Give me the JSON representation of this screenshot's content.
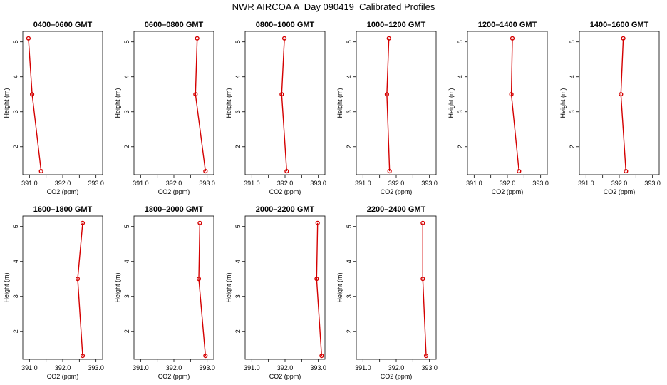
{
  "title": "NWR AIRCOA A  Day 090419  Calibrated Profiles",
  "colors": {
    "line": "#d40000",
    "axis": "#000000",
    "background": "#ffffff"
  },
  "chart_data": [
    {
      "type": "line",
      "title": "0400–0600 GMT",
      "xlabel": "CO2 (ppm)",
      "ylabel": "Height (m)",
      "xlim": [
        390.8,
        393.2
      ],
      "ylim": [
        1.2,
        5.3
      ],
      "xticks": [
        391.0,
        392.0,
        393.0
      ],
      "xticklabels": [
        "391.0",
        "392.0",
        "393.0"
      ],
      "yticks": [
        2,
        3,
        4,
        5
      ],
      "yticklabels": [
        "2",
        "3",
        "4",
        "5"
      ],
      "series": [
        {
          "x": [
            391.35,
            391.08,
            390.97
          ],
          "y": [
            1.3,
            3.5,
            5.1
          ]
        }
      ]
    },
    {
      "type": "line",
      "title": "0600–0800 GMT",
      "xlabel": "CO2 (ppm)",
      "ylabel": "Height (m)",
      "xlim": [
        390.8,
        393.2
      ],
      "ylim": [
        1.2,
        5.3
      ],
      "xticks": [
        391.0,
        392.0,
        393.0
      ],
      "xticklabels": [
        "391.0",
        "392.0",
        "393.0"
      ],
      "yticks": [
        2,
        3,
        4,
        5
      ],
      "yticklabels": [
        "2",
        "3",
        "4",
        "5"
      ],
      "series": [
        {
          "x": [
            392.95,
            392.65,
            392.7
          ],
          "y": [
            1.3,
            3.5,
            5.1
          ]
        }
      ]
    },
    {
      "type": "line",
      "title": "0800–1000 GMT",
      "xlabel": "CO2 (ppm)",
      "ylabel": "Height (m)",
      "xlim": [
        390.8,
        393.2
      ],
      "ylim": [
        1.2,
        5.3
      ],
      "xticks": [
        391.0,
        392.0,
        393.0
      ],
      "xticklabels": [
        "391.0",
        "392.0",
        "393.0"
      ],
      "yticks": [
        2,
        3,
        4,
        5
      ],
      "yticklabels": [
        "2",
        "3",
        "4",
        "5"
      ],
      "series": [
        {
          "x": [
            392.05,
            391.9,
            391.98
          ],
          "y": [
            1.3,
            3.5,
            5.1
          ]
        }
      ]
    },
    {
      "type": "line",
      "title": "1000–1200 GMT",
      "xlabel": "CO2 (ppm)",
      "ylabel": "Height (m)",
      "xlim": [
        390.8,
        393.2
      ],
      "ylim": [
        1.2,
        5.3
      ],
      "xticks": [
        391.0,
        392.0,
        393.0
      ],
      "xticklabels": [
        "391.0",
        "392.0",
        "393.0"
      ],
      "yticks": [
        2,
        3,
        4,
        5
      ],
      "yticklabels": [
        "2",
        "3",
        "4",
        "5"
      ],
      "series": [
        {
          "x": [
            391.8,
            391.72,
            391.78
          ],
          "y": [
            1.3,
            3.5,
            5.1
          ]
        }
      ]
    },
    {
      "type": "line",
      "title": "1200–1400 GMT",
      "xlabel": "CO2 (ppm)",
      "ylabel": "Height (m)",
      "xlim": [
        390.8,
        393.2
      ],
      "ylim": [
        1.2,
        5.3
      ],
      "xticks": [
        391.0,
        392.0,
        393.0
      ],
      "xticklabels": [
        "391.0",
        "392.0",
        "393.0"
      ],
      "yticks": [
        2,
        3,
        4,
        5
      ],
      "yticklabels": [
        "2",
        "3",
        "4",
        "5"
      ],
      "series": [
        {
          "x": [
            392.35,
            392.12,
            392.15
          ],
          "y": [
            1.3,
            3.5,
            5.1
          ]
        }
      ]
    },
    {
      "type": "line",
      "title": "1400–1600 GMT",
      "xlabel": "CO2 (ppm)",
      "ylabel": "Height (m)",
      "xlim": [
        390.8,
        393.2
      ],
      "ylim": [
        1.2,
        5.3
      ],
      "xticks": [
        391.0,
        392.0,
        393.0
      ],
      "xticklabels": [
        "391.0",
        "392.0",
        "393.0"
      ],
      "yticks": [
        2,
        3,
        4,
        5
      ],
      "yticklabels": [
        "2",
        "3",
        "4",
        "5"
      ],
      "series": [
        {
          "x": [
            392.2,
            392.05,
            392.12
          ],
          "y": [
            1.3,
            3.5,
            5.1
          ]
        }
      ]
    },
    {
      "type": "line",
      "title": "1600–1800 GMT",
      "xlabel": "CO2 (ppm)",
      "ylabel": "Height (m)",
      "xlim": [
        390.8,
        393.2
      ],
      "ylim": [
        1.2,
        5.3
      ],
      "xticks": [
        391.0,
        392.0,
        393.0
      ],
      "xticklabels": [
        "391.0",
        "392.0",
        "393.0"
      ],
      "yticks": [
        2,
        3,
        4,
        5
      ],
      "yticklabels": [
        "2",
        "3",
        "4",
        "5"
      ],
      "series": [
        {
          "x": [
            392.6,
            392.45,
            392.6
          ],
          "y": [
            1.3,
            3.5,
            5.1
          ]
        }
      ]
    },
    {
      "type": "line",
      "title": "1800–2000 GMT",
      "xlabel": "CO2 (ppm)",
      "ylabel": "Height (m)",
      "xlim": [
        390.8,
        393.2
      ],
      "ylim": [
        1.2,
        5.3
      ],
      "xticks": [
        391.0,
        392.0,
        393.0
      ],
      "xticklabels": [
        "391.0",
        "392.0",
        "393.0"
      ],
      "yticks": [
        2,
        3,
        4,
        5
      ],
      "yticklabels": [
        "2",
        "3",
        "4",
        "5"
      ],
      "series": [
        {
          "x": [
            392.95,
            392.75,
            392.78
          ],
          "y": [
            1.3,
            3.5,
            5.1
          ]
        }
      ]
    },
    {
      "type": "line",
      "title": "2000–2200 GMT",
      "xlabel": "CO2 (ppm)",
      "ylabel": "Height (m)",
      "xlim": [
        390.8,
        393.2
      ],
      "ylim": [
        1.2,
        5.3
      ],
      "xticks": [
        391.0,
        392.0,
        393.0
      ],
      "xticklabels": [
        "391.0",
        "392.0",
        "393.0"
      ],
      "yticks": [
        2,
        3,
        4,
        5
      ],
      "yticklabels": [
        "2",
        "3",
        "4",
        "5"
      ],
      "series": [
        {
          "x": [
            393.1,
            392.95,
            392.98
          ],
          "y": [
            1.3,
            3.5,
            5.1
          ]
        }
      ]
    },
    {
      "type": "line",
      "title": "2200–2400 GMT",
      "xlabel": "CO2 (ppm)",
      "ylabel": "Height (m)",
      "xlim": [
        390.8,
        393.2
      ],
      "ylim": [
        1.2,
        5.3
      ],
      "xticks": [
        391.0,
        392.0,
        393.0
      ],
      "xticklabels": [
        "391.0",
        "392.0",
        "393.0"
      ],
      "yticks": [
        2,
        3,
        4,
        5
      ],
      "yticklabels": [
        "2",
        "3",
        "4",
        "5"
      ],
      "series": [
        {
          "x": [
            392.9,
            392.8,
            392.8
          ],
          "y": [
            1.3,
            3.5,
            5.1
          ]
        }
      ]
    }
  ]
}
